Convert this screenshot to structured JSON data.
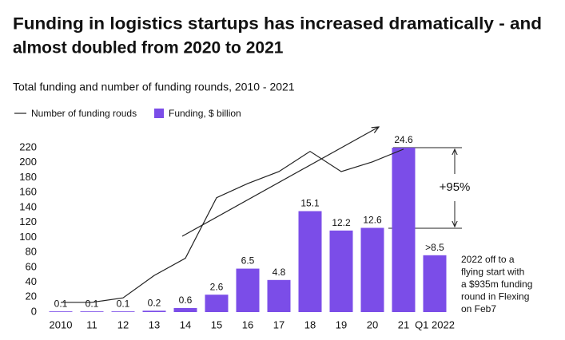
{
  "chart_data": {
    "type": "bar",
    "title": [
      "Funding in logistics startups has increased dramatically - and",
      "almost doubled from 2020 to 2021"
    ],
    "subtitle": "Total funding and number of funding rounds, 2010 - 2021",
    "categories": [
      "2010",
      "11",
      "12",
      "13",
      "14",
      "15",
      "16",
      "17",
      "18",
      "19",
      "20",
      "21",
      "Q1 2022"
    ],
    "series": [
      {
        "name": "Number of funding rouds",
        "color": "#222222",
        "type": "line",
        "values": [
          13,
          13,
          19,
          49,
          72,
          153,
          172,
          188,
          215,
          188,
          201,
          218,
          null
        ]
      },
      {
        "name": "Funding, $ billion",
        "color": "#7b4de8",
        "type": "bar",
        "axis": "y2",
        "values": [
          0.1,
          0.1,
          0.1,
          0.2,
          0.6,
          2.6,
          6.5,
          4.8,
          15.1,
          12.2,
          12.6,
          24.6,
          8.5
        ],
        "value_labels": [
          "0.1",
          "0.1",
          "0.1",
          "0.2",
          "0.6",
          "2.6",
          "6.5",
          "4.8",
          "15.1",
          "12.2",
          "12.6",
          "24.6",
          ">8.5"
        ]
      }
    ],
    "ylim": [
      0,
      220
    ],
    "yticks": [
      0,
      20,
      40,
      60,
      80,
      100,
      120,
      140,
      160,
      180,
      200,
      220
    ],
    "y2lim": [
      0,
      24.6
    ],
    "annotations": {
      "growth": "+95%",
      "note": [
        "2022 off to a",
        "flying start with",
        "a $935m funding",
        "round in Flexing",
        "on Feb7"
      ]
    }
  }
}
